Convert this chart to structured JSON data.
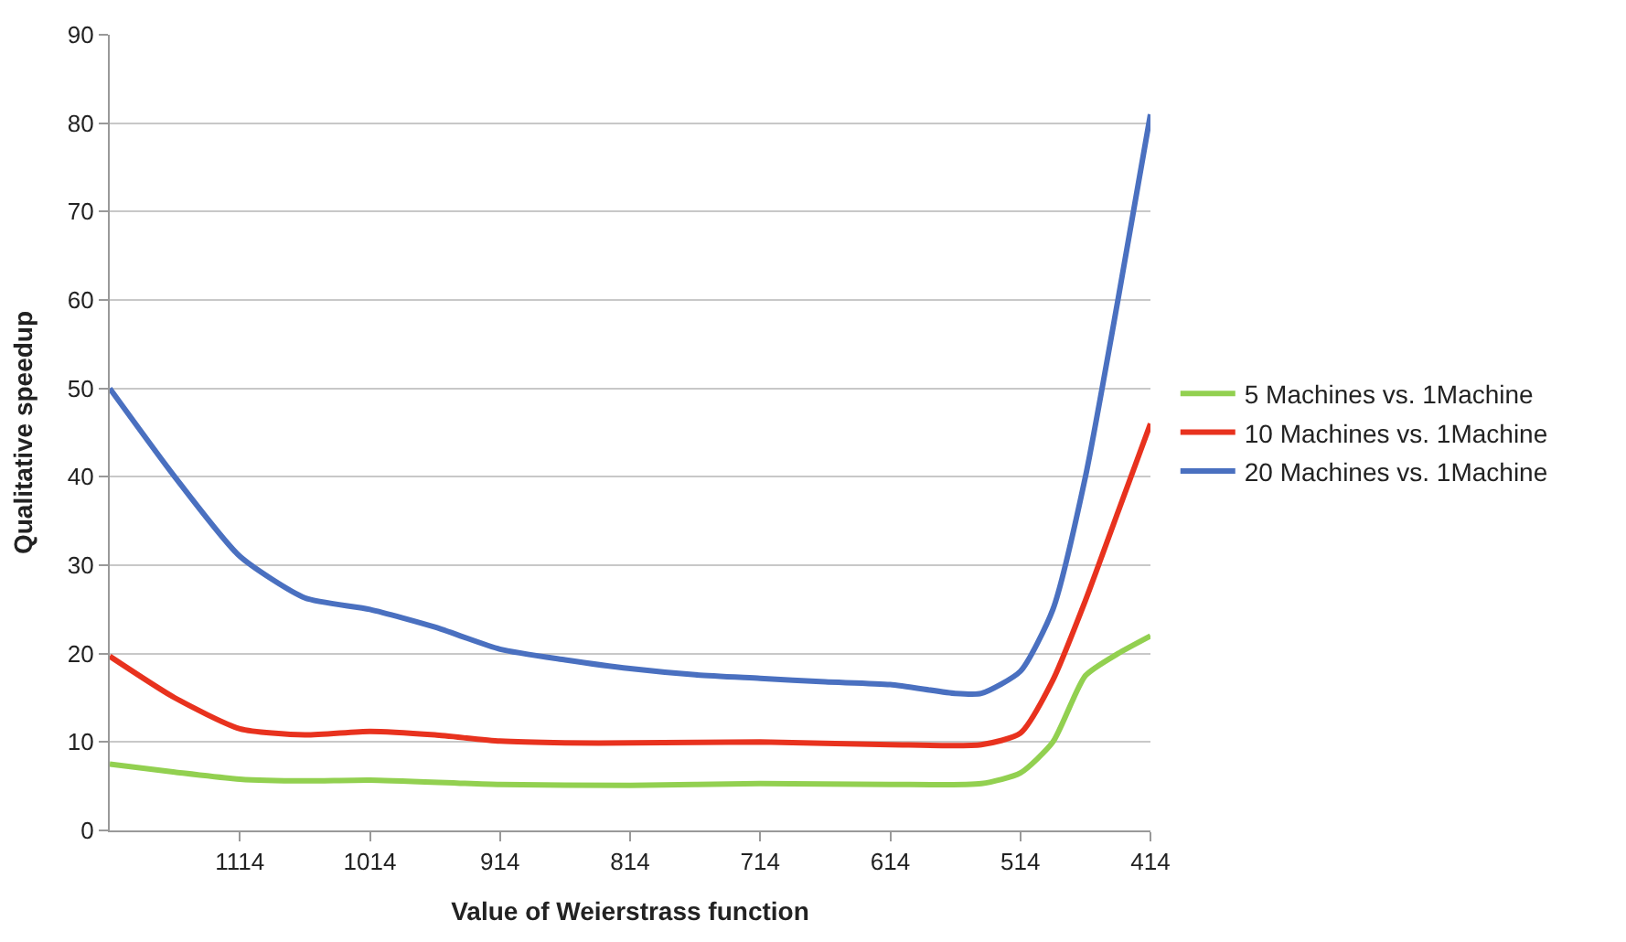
{
  "chart_data": {
    "type": "line",
    "xlabel": "Value of Weierstrass function",
    "ylabel": "Qualitative speedup",
    "xlim": [
      1214,
      414
    ],
    "xticks": [
      1114,
      1014,
      914,
      814,
      714,
      614,
      514,
      414
    ],
    "ylim": [
      0,
      90
    ],
    "yticks": [
      0,
      10,
      20,
      30,
      40,
      50,
      60,
      70,
      80,
      90
    ],
    "grid": "y",
    "legend": "right",
    "marker": "none",
    "line_style": "solid",
    "series": [
      {
        "name": "5 Machines vs. 1Machine",
        "color": "#92d050",
        "x": [
          1214,
          1164,
          1114,
          1064,
          1014,
          914,
          814,
          714,
          614,
          544,
          514,
          489,
          464,
          439,
          414
        ],
        "values": [
          7.5,
          6.6,
          5.8,
          5.6,
          5.7,
          5.2,
          5.1,
          5.3,
          5.2,
          5.3,
          6.5,
          10,
          17.5,
          20,
          22
        ]
      },
      {
        "name": "10 Machines vs. 1Machine",
        "color": "#e8321e",
        "x": [
          1214,
          1164,
          1114,
          1064,
          1014,
          964,
          914,
          864,
          814,
          714,
          614,
          544,
          514,
          489,
          464,
          439,
          414
        ],
        "values": [
          19.7,
          15,
          11.5,
          10.8,
          11.2,
          10.8,
          10.1,
          9.9,
          9.9,
          10,
          9.7,
          9.7,
          11,
          17,
          26,
          36,
          46
        ]
      },
      {
        "name": "20 Machines vs. 1Machine",
        "color": "#4a70c0",
        "x": [
          1214,
          1164,
          1114,
          1064,
          1014,
          964,
          914,
          864,
          814,
          764,
          714,
          664,
          614,
          564,
          544,
          514,
          489,
          464,
          439,
          414
        ],
        "values": [
          50,
          40,
          31,
          26.3,
          25,
          23,
          20.5,
          19.3,
          18.3,
          17.6,
          17.2,
          16.8,
          16.5,
          15.5,
          15.5,
          18,
          25,
          40,
          60,
          81
        ]
      }
    ]
  }
}
